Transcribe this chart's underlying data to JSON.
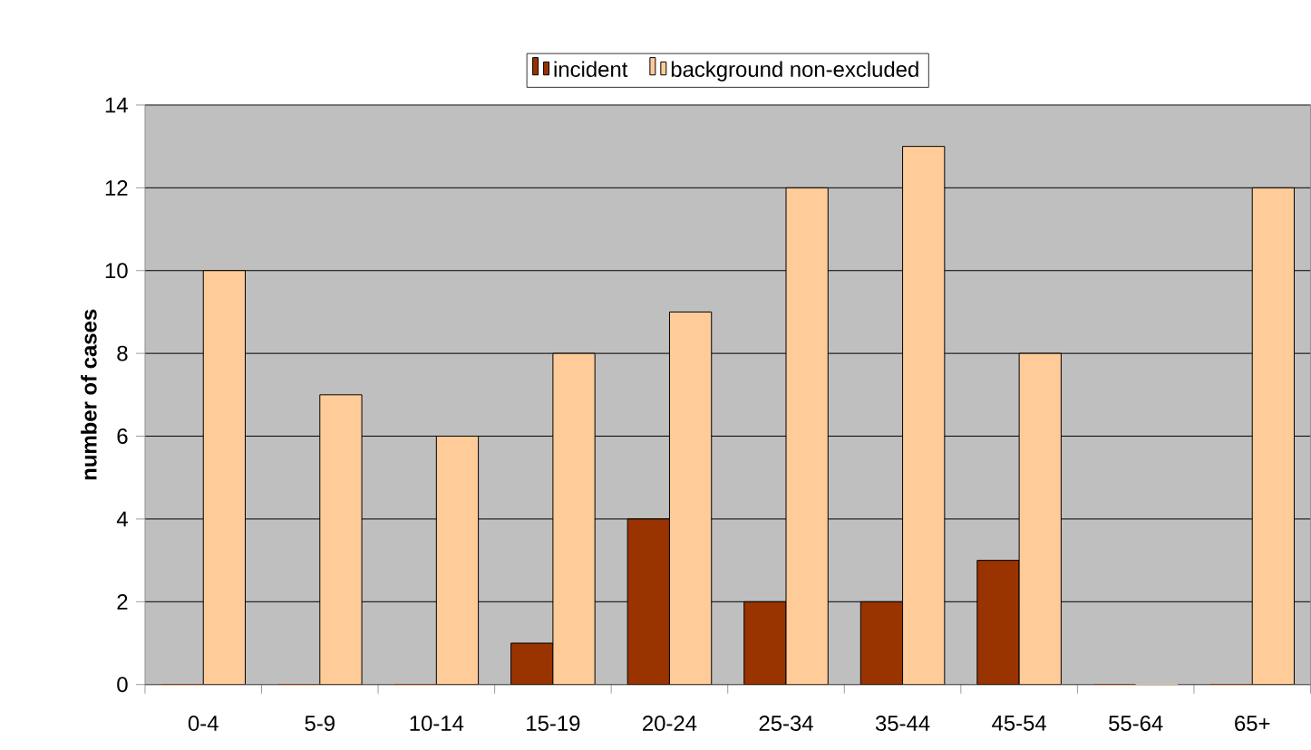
{
  "chart_data": {
    "type": "bar",
    "ylabel": "number of cases",
    "categories": [
      "0-4",
      "5-9",
      "10-14",
      "15-19",
      "20-24",
      "25-34",
      "35-44",
      "45-54",
      "55-64",
      "65+"
    ],
    "series": [
      {
        "name": "incident",
        "color": "#993300",
        "values": [
          0,
          0,
          0,
          1,
          4,
          2,
          2,
          3,
          0,
          0
        ]
      },
      {
        "name": "background non-excluded",
        "color": "#ffcc99",
        "values": [
          10,
          7,
          6,
          8,
          9,
          12,
          13,
          8,
          0,
          12
        ]
      }
    ],
    "ylim": [
      0,
      14
    ],
    "yticks": [
      0,
      2,
      4,
      6,
      8,
      10,
      12,
      14
    ],
    "grid": "y",
    "legend": "top"
  }
}
